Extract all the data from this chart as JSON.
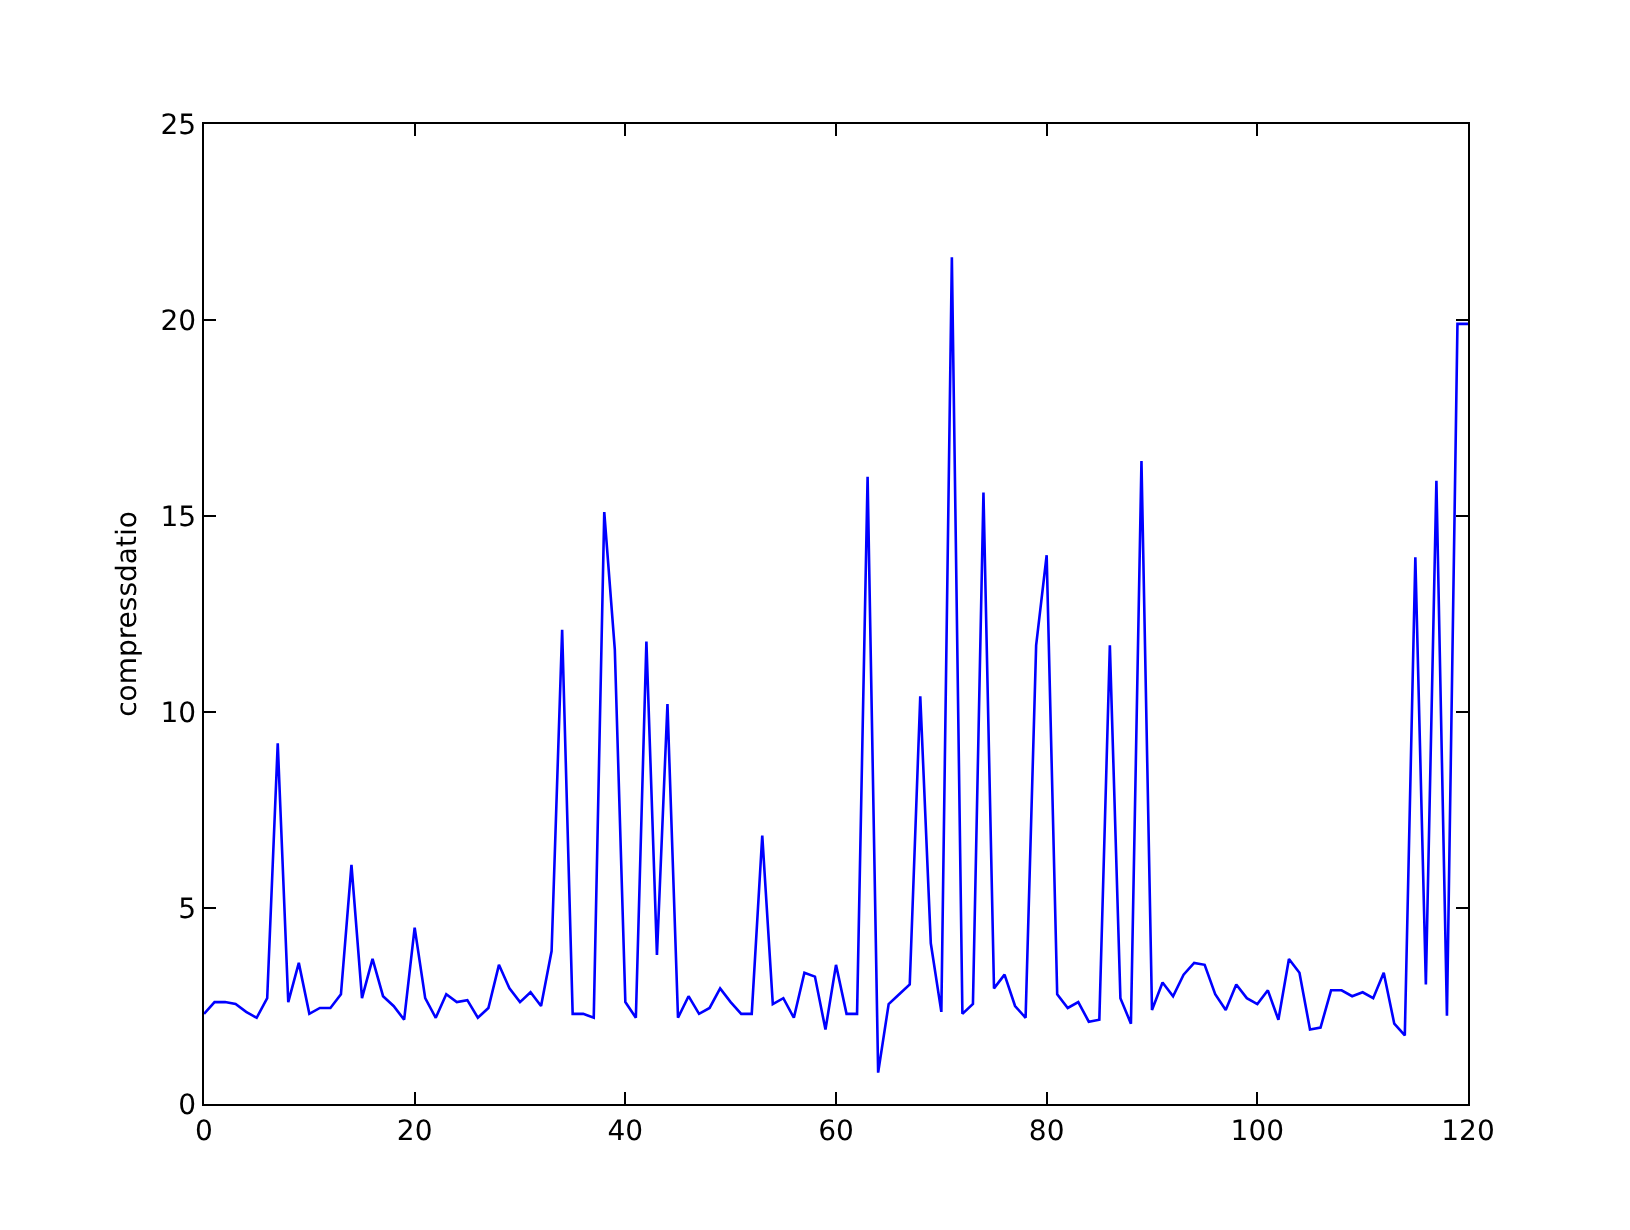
{
  "chart_data": {
    "type": "line",
    "ylabel": "compressdatio",
    "xlim": [
      0,
      120
    ],
    "xticks": [
      0,
      20,
      40,
      60,
      80,
      100,
      120
    ],
    "ylim": [
      0,
      25
    ],
    "yticks": [
      0,
      5,
      10,
      15,
      20,
      25
    ],
    "grid": false,
    "marker": "none",
    "line_style": "solid",
    "series": [
      {
        "color": "#0000ff",
        "x": [
          0,
          1,
          2,
          3,
          4,
          5,
          6,
          7,
          8,
          9,
          10,
          11,
          12,
          13,
          14,
          15,
          16,
          17,
          18,
          19,
          20,
          21,
          22,
          23,
          24,
          25,
          26,
          27,
          28,
          29,
          30,
          31,
          32,
          33,
          34,
          35,
          36,
          37,
          38,
          39,
          40,
          41,
          42,
          43,
          44,
          45,
          46,
          47,
          48,
          49,
          50,
          51,
          52,
          53,
          54,
          55,
          56,
          57,
          58,
          59,
          60,
          61,
          62,
          63,
          64,
          65,
          66,
          67,
          68,
          69,
          70,
          71,
          72,
          73,
          74,
          75,
          76,
          77,
          78,
          79,
          80,
          81,
          82,
          83,
          84,
          85,
          86,
          87,
          88,
          89,
          90,
          91,
          92,
          93,
          94,
          95,
          96,
          97,
          98,
          99,
          100,
          101,
          102,
          103,
          104,
          105,
          106,
          107,
          108,
          109,
          110,
          111,
          112,
          113,
          114,
          115,
          116,
          117,
          118,
          119,
          120
        ],
        "values": [
          2.3,
          2.6,
          2.6,
          2.55,
          2.35,
          2.2,
          2.7,
          9.2,
          2.6,
          3.6,
          2.3,
          2.45,
          2.45,
          2.8,
          6.1,
          2.7,
          3.7,
          2.75,
          2.5,
          2.15,
          4.5,
          2.7,
          2.2,
          2.8,
          2.6,
          2.65,
          2.2,
          2.45,
          3.55,
          2.95,
          2.6,
          2.85,
          2.5,
          3.9,
          12.1,
          2.3,
          2.3,
          2.2,
          15.1,
          11.6,
          2.6,
          2.2,
          11.8,
          3.8,
          10.2,
          2.2,
          2.75,
          2.3,
          2.45,
          2.95,
          2.6,
          2.3,
          2.3,
          6.85,
          2.55,
          2.7,
          2.2,
          3.35,
          3.25,
          1.9,
          3.55,
          2.3,
          2.3,
          16.0,
          0.8,
          2.55,
          2.8,
          3.05,
          10.4,
          4.1,
          2.35,
          21.6,
          2.3,
          2.55,
          15.6,
          2.95,
          3.3,
          2.5,
          2.2,
          11.7,
          14.0,
          2.8,
          2.45,
          2.6,
          2.1,
          2.15,
          11.7,
          2.7,
          2.05,
          16.4,
          2.4,
          3.1,
          2.75,
          3.3,
          3.6,
          3.55,
          2.8,
          2.4,
          3.05,
          2.7,
          2.55,
          2.9,
          2.15,
          3.7,
          3.35,
          1.9,
          1.95,
          2.9,
          2.9,
          2.75,
          2.85,
          2.7,
          3.35,
          2.05,
          1.75,
          13.95,
          3.05,
          15.9,
          2.25,
          19.9,
          19.9
        ]
      }
    ]
  }
}
